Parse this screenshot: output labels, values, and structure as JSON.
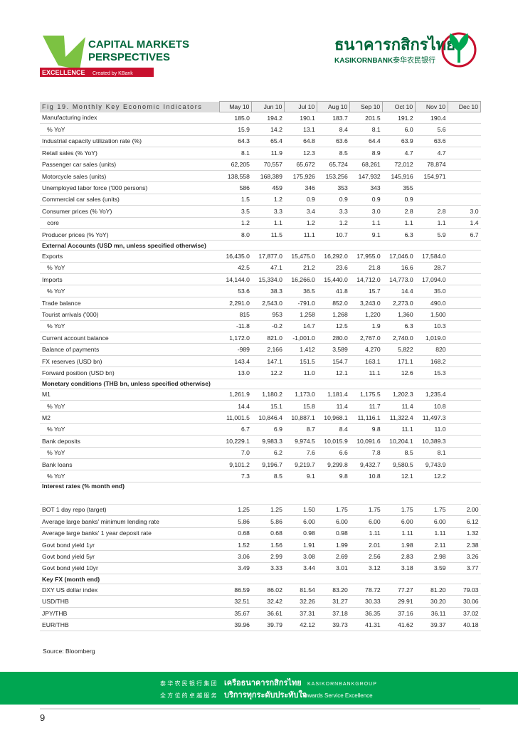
{
  "header": {
    "title_line1": "CAPITAL MARKETS",
    "title_line2": "PERSPECTIVES",
    "tag": "EXCELLENCE",
    "created": "Created by KBank",
    "bank_thai": "ธนาคารกสิกรไทย",
    "bank_en": "KASIKORNBANK",
    "bank_cn": "泰华农民银行"
  },
  "table": {
    "title": "Fig 19. Monthly Key Economic Indicators",
    "columns": [
      "May 10",
      "Jun 10",
      "Jul 10",
      "Aug 10",
      "Sep 10",
      "Oct 10",
      "Nov 10",
      "Dec 10"
    ],
    "rows": [
      {
        "label": "Manufacturing index",
        "cells": [
          "185.0",
          "194.2",
          "190.1",
          "183.7",
          "201.5",
          "191.2",
          "190.4",
          null
        ]
      },
      {
        "label": "   % YoY",
        "cells": [
          "15.9",
          "14.2",
          "13.1",
          "8.4",
          "8.1",
          "6.0",
          "5.6",
          null
        ]
      },
      {
        "label": "Industrial capacity utilization rate (%)",
        "cells": [
          "64.3",
          "65.4",
          "64.8",
          "63.6",
          "64.4",
          "63.9",
          "63.6",
          null
        ]
      },
      {
        "label": "Retail sales (% YoY)",
        "cells": [
          "8.1",
          "11.9",
          "12.3",
          "8.5",
          "8.9",
          "4.7",
          "4.7",
          null
        ]
      },
      {
        "label": "Passenger car sales (units)",
        "cells": [
          "62,205",
          "70,557",
          "65,672",
          "65,724",
          "68,261",
          "72,012",
          "78,874",
          null
        ]
      },
      {
        "label": "Motorcycle sales (units)",
        "cells": [
          "138,558",
          "168,389",
          "175,926",
          "153,256",
          "147,932",
          "145,916",
          "154,971",
          null
        ]
      },
      {
        "label": "Unemployed labor force ('000 persons)",
        "cells": [
          "586",
          "459",
          "346",
          "353",
          "343",
          "355",
          null,
          null
        ]
      },
      {
        "label": "Commercial car sales (units)",
        "cells": [
          "1.5",
          "1.2",
          "0.9",
          "0.9",
          "0.9",
          "0.9",
          null,
          null
        ]
      },
      {
        "label": "Consumer prices (% YoY)",
        "cells": [
          "3.5",
          "3.3",
          "3.4",
          "3.3",
          "3.0",
          "2.8",
          "2.8",
          "3.0"
        ]
      },
      {
        "label": "   core",
        "cells": [
          "1.2",
          "1.1",
          "1.2",
          "1.2",
          "1.1",
          "1.1",
          "1.1",
          "1.4"
        ]
      },
      {
        "label": "Producer prices (% YoY)",
        "cells": [
          "8.0",
          "11.5",
          "11.1",
          "10.7",
          "9.1",
          "6.3",
          "5.9",
          "6.7"
        ]
      },
      {
        "section": "External Accounts (USD mn, unless specified otherwise)"
      },
      {
        "label": "Exports",
        "cells": [
          "16,435.0",
          "17,877.0",
          "15,475.0",
          "16,292.0",
          "17,955.0",
          "17,046.0",
          "17,584.0",
          null
        ]
      },
      {
        "label": "   % YoY",
        "cells": [
          "42.5",
          "47.1",
          "21.2",
          "23.6",
          "21.8",
          "16.6",
          "28.7",
          null
        ]
      },
      {
        "label": "Imports",
        "cells": [
          "14,144.0",
          "15,334.0",
          "16,266.0",
          "15,440.0",
          "14,712.0",
          "14,773.0",
          "17,094.0",
          null
        ]
      },
      {
        "label": "   % YoY",
        "cells": [
          "53.6",
          "38.3",
          "36.5",
          "41.8",
          "15.7",
          "14.4",
          "35.0",
          null
        ]
      },
      {
        "label": "Trade balance",
        "cells": [
          "2,291.0",
          "2,543.0",
          "-791.0",
          "852.0",
          "3,243.0",
          "2,273.0",
          "490.0",
          null
        ]
      },
      {
        "label": "Tourist arrivals ('000)",
        "cells": [
          "815",
          "953",
          "1,258",
          "1,268",
          "1,220",
          "1,360",
          "1,500",
          null
        ]
      },
      {
        "label": "   % YoY",
        "cells": [
          "-11.8",
          "-0.2",
          "14.7",
          "12.5",
          "1.9",
          "6.3",
          "10.3",
          null
        ]
      },
      {
        "label": "Current account balance",
        "cells": [
          "1,172.0",
          "821.0",
          "-1,001.0",
          "280.0",
          "2,767.0",
          "2,740.0",
          "1,019.0",
          null
        ]
      },
      {
        "label": "Balance of payments",
        "cells": [
          "-989",
          "2,166",
          "1,412",
          "3,589",
          "4,270",
          "5,822",
          "820",
          null
        ]
      },
      {
        "label": "FX reserves (USD bn)",
        "cells": [
          "143.4",
          "147.1",
          "151.5",
          "154.7",
          "163.1",
          "171.1",
          "168.2",
          null
        ]
      },
      {
        "label": "Forward position (USD bn)",
        "cells": [
          "13.0",
          "12.2",
          "11.0",
          "12.1",
          "11.1",
          "12.6",
          "15.3",
          null
        ]
      },
      {
        "section": "Monetary conditions (THB bn, unless specified otherwise)"
      },
      {
        "label": "M1",
        "cells": [
          "1,261.9",
          "1,180.2",
          "1,173.0",
          "1,181.4",
          "1,175.5",
          "1,202.3",
          "1,235.4",
          null
        ]
      },
      {
        "label": "   % YoY",
        "cells": [
          "14.4",
          "15.1",
          "15.8",
          "11.4",
          "11.7",
          "11.4",
          "10.8",
          null
        ]
      },
      {
        "label": "M2",
        "cells": [
          "11,001.5",
          "10,846.4",
          "10,887.1",
          "10,968.1",
          "11,116.1",
          "11,322.4",
          "11,497.3",
          null
        ]
      },
      {
        "label": "   % YoY",
        "cells": [
          "6.7",
          "6.9",
          "8.7",
          "8.4",
          "9.8",
          "11.1",
          "11.0",
          null
        ]
      },
      {
        "label": "Bank deposits",
        "cells": [
          "10,229.1",
          "9,983.3",
          "9,974.5",
          "10,015.9",
          "10,091.6",
          "10,204.1",
          "10,389.3",
          null
        ]
      },
      {
        "label": "   % YoY",
        "cells": [
          "7.0",
          "6.2",
          "7.6",
          "6.6",
          "7.8",
          "8.5",
          "8.1",
          null
        ]
      },
      {
        "label": "Bank loans",
        "cells": [
          "9,101.2",
          "9,196.7",
          "9,219.7",
          "9,299.8",
          "9,432.7",
          "9,580.5",
          "9,743.9",
          null
        ]
      },
      {
        "label": "   % YoY",
        "cells": [
          "7.3",
          "8.5",
          "9.1",
          "9.8",
          "10.8",
          "12.1",
          "12.2",
          null
        ]
      },
      {
        "section": "Interest rates (% month end)"
      },
      {
        "label": "BOT 1 day repo (target)",
        "cells": [
          "1.25",
          "1.25",
          "1.50",
          "1.75",
          "1.75",
          "1.75",
          "1.75",
          "2.00"
        ]
      },
      {
        "label": "Average large banks' minimum lending rate",
        "cells": [
          "5.86",
          "5.86",
          "6.00",
          "6.00",
          "6.00",
          "6.00",
          "6.00",
          "6.12"
        ]
      },
      {
        "label": "Average large banks' 1 year deposit rate",
        "cells": [
          "0.68",
          "0.68",
          "0.98",
          "0.98",
          "1.11",
          "1.11",
          "1.11",
          "1.32"
        ]
      },
      {
        "label": "Govt bond yield 1yr",
        "cells": [
          "1.52",
          "1.56",
          "1.91",
          "1.99",
          "2.01",
          "1.98",
          "2.11",
          "2.38"
        ]
      },
      {
        "label": "Govt bond yield 5yr",
        "cells": [
          "3.06",
          "2.99",
          "3.08",
          "2.69",
          "2.56",
          "2.83",
          "2.98",
          "3.26"
        ]
      },
      {
        "label": "Govt bond yield 10yr",
        "cells": [
          "3.49",
          "3.33",
          "3.44",
          "3.01",
          "3.12",
          "3.18",
          "3.59",
          "3.77"
        ]
      },
      {
        "section": "Key FX (month end)"
      },
      {
        "label": "DXY US dollar index",
        "cells": [
          "86.59",
          "86.02",
          "81.54",
          "83.20",
          "78.72",
          "77.27",
          "81.20",
          "79.03"
        ]
      },
      {
        "label": "USD/THB",
        "cells": [
          "32.51",
          "32.42",
          "32.26",
          "31.27",
          "30.33",
          "29.91",
          "30.20",
          "30.06"
        ]
      },
      {
        "label": "JPY/THB",
        "cells": [
          "35.67",
          "36.61",
          "37.31",
          "37.18",
          "36.35",
          "37.16",
          "36.11",
          "37.02"
        ]
      },
      {
        "label": "EUR/THB",
        "cells": [
          "39.96",
          "39.79",
          "42.12",
          "39.73",
          "41.31",
          "41.62",
          "39.37",
          "40.18"
        ]
      }
    ],
    "source": "Source: Bloomberg"
  },
  "footer": {
    "cn1": "泰 华 农 民 银 行 集 团",
    "th1": "เครือธนาคารกสิกรไทย",
    "en1": "KASIKORNBANKGROUP",
    "cn2": "全 方 位 的 卓 越 服 务",
    "th2": "บริการทุกระดับประทับใจ",
    "en2": "Towards Service Excellence"
  },
  "page_number": "9"
}
